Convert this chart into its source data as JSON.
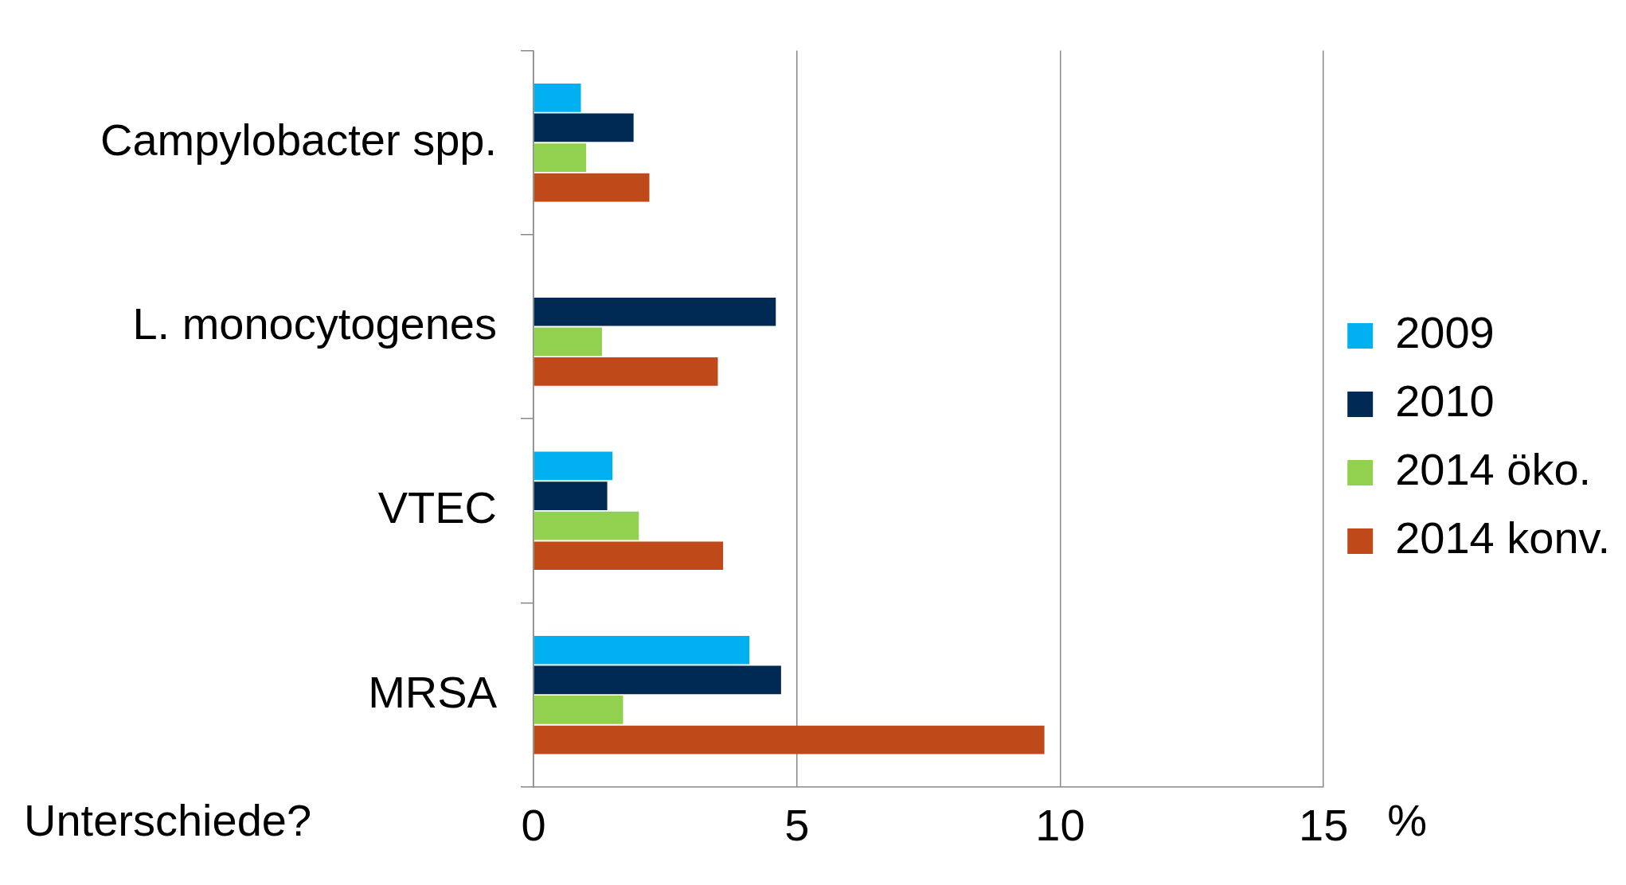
{
  "chart_data": {
    "type": "bar",
    "orientation": "horizontal",
    "categories": [
      "Campylobacter spp.",
      "L. monocytogenes",
      "VTEC",
      "MRSA"
    ],
    "series": [
      {
        "name": "2009",
        "color": "#00b0f0",
        "values": [
          0.9,
          null,
          1.5,
          4.1
        ]
      },
      {
        "name": "2010",
        "color": "#002a54",
        "values": [
          1.9,
          4.6,
          1.4,
          4.7
        ]
      },
      {
        "name": "2014 öko.",
        "color": "#92d050",
        "values": [
          1.0,
          1.3,
          2.0,
          1.7
        ]
      },
      {
        "name": "2014 konv.",
        "color": "#c0491a",
        "values": [
          2.2,
          3.5,
          3.6,
          9.7
        ]
      }
    ],
    "xlim": [
      0,
      15
    ],
    "xticks": [
      0,
      5,
      10,
      15
    ],
    "xlabel": "%",
    "grid": "x",
    "legend": "right",
    "annotations": [
      "Unterschiede?"
    ]
  }
}
